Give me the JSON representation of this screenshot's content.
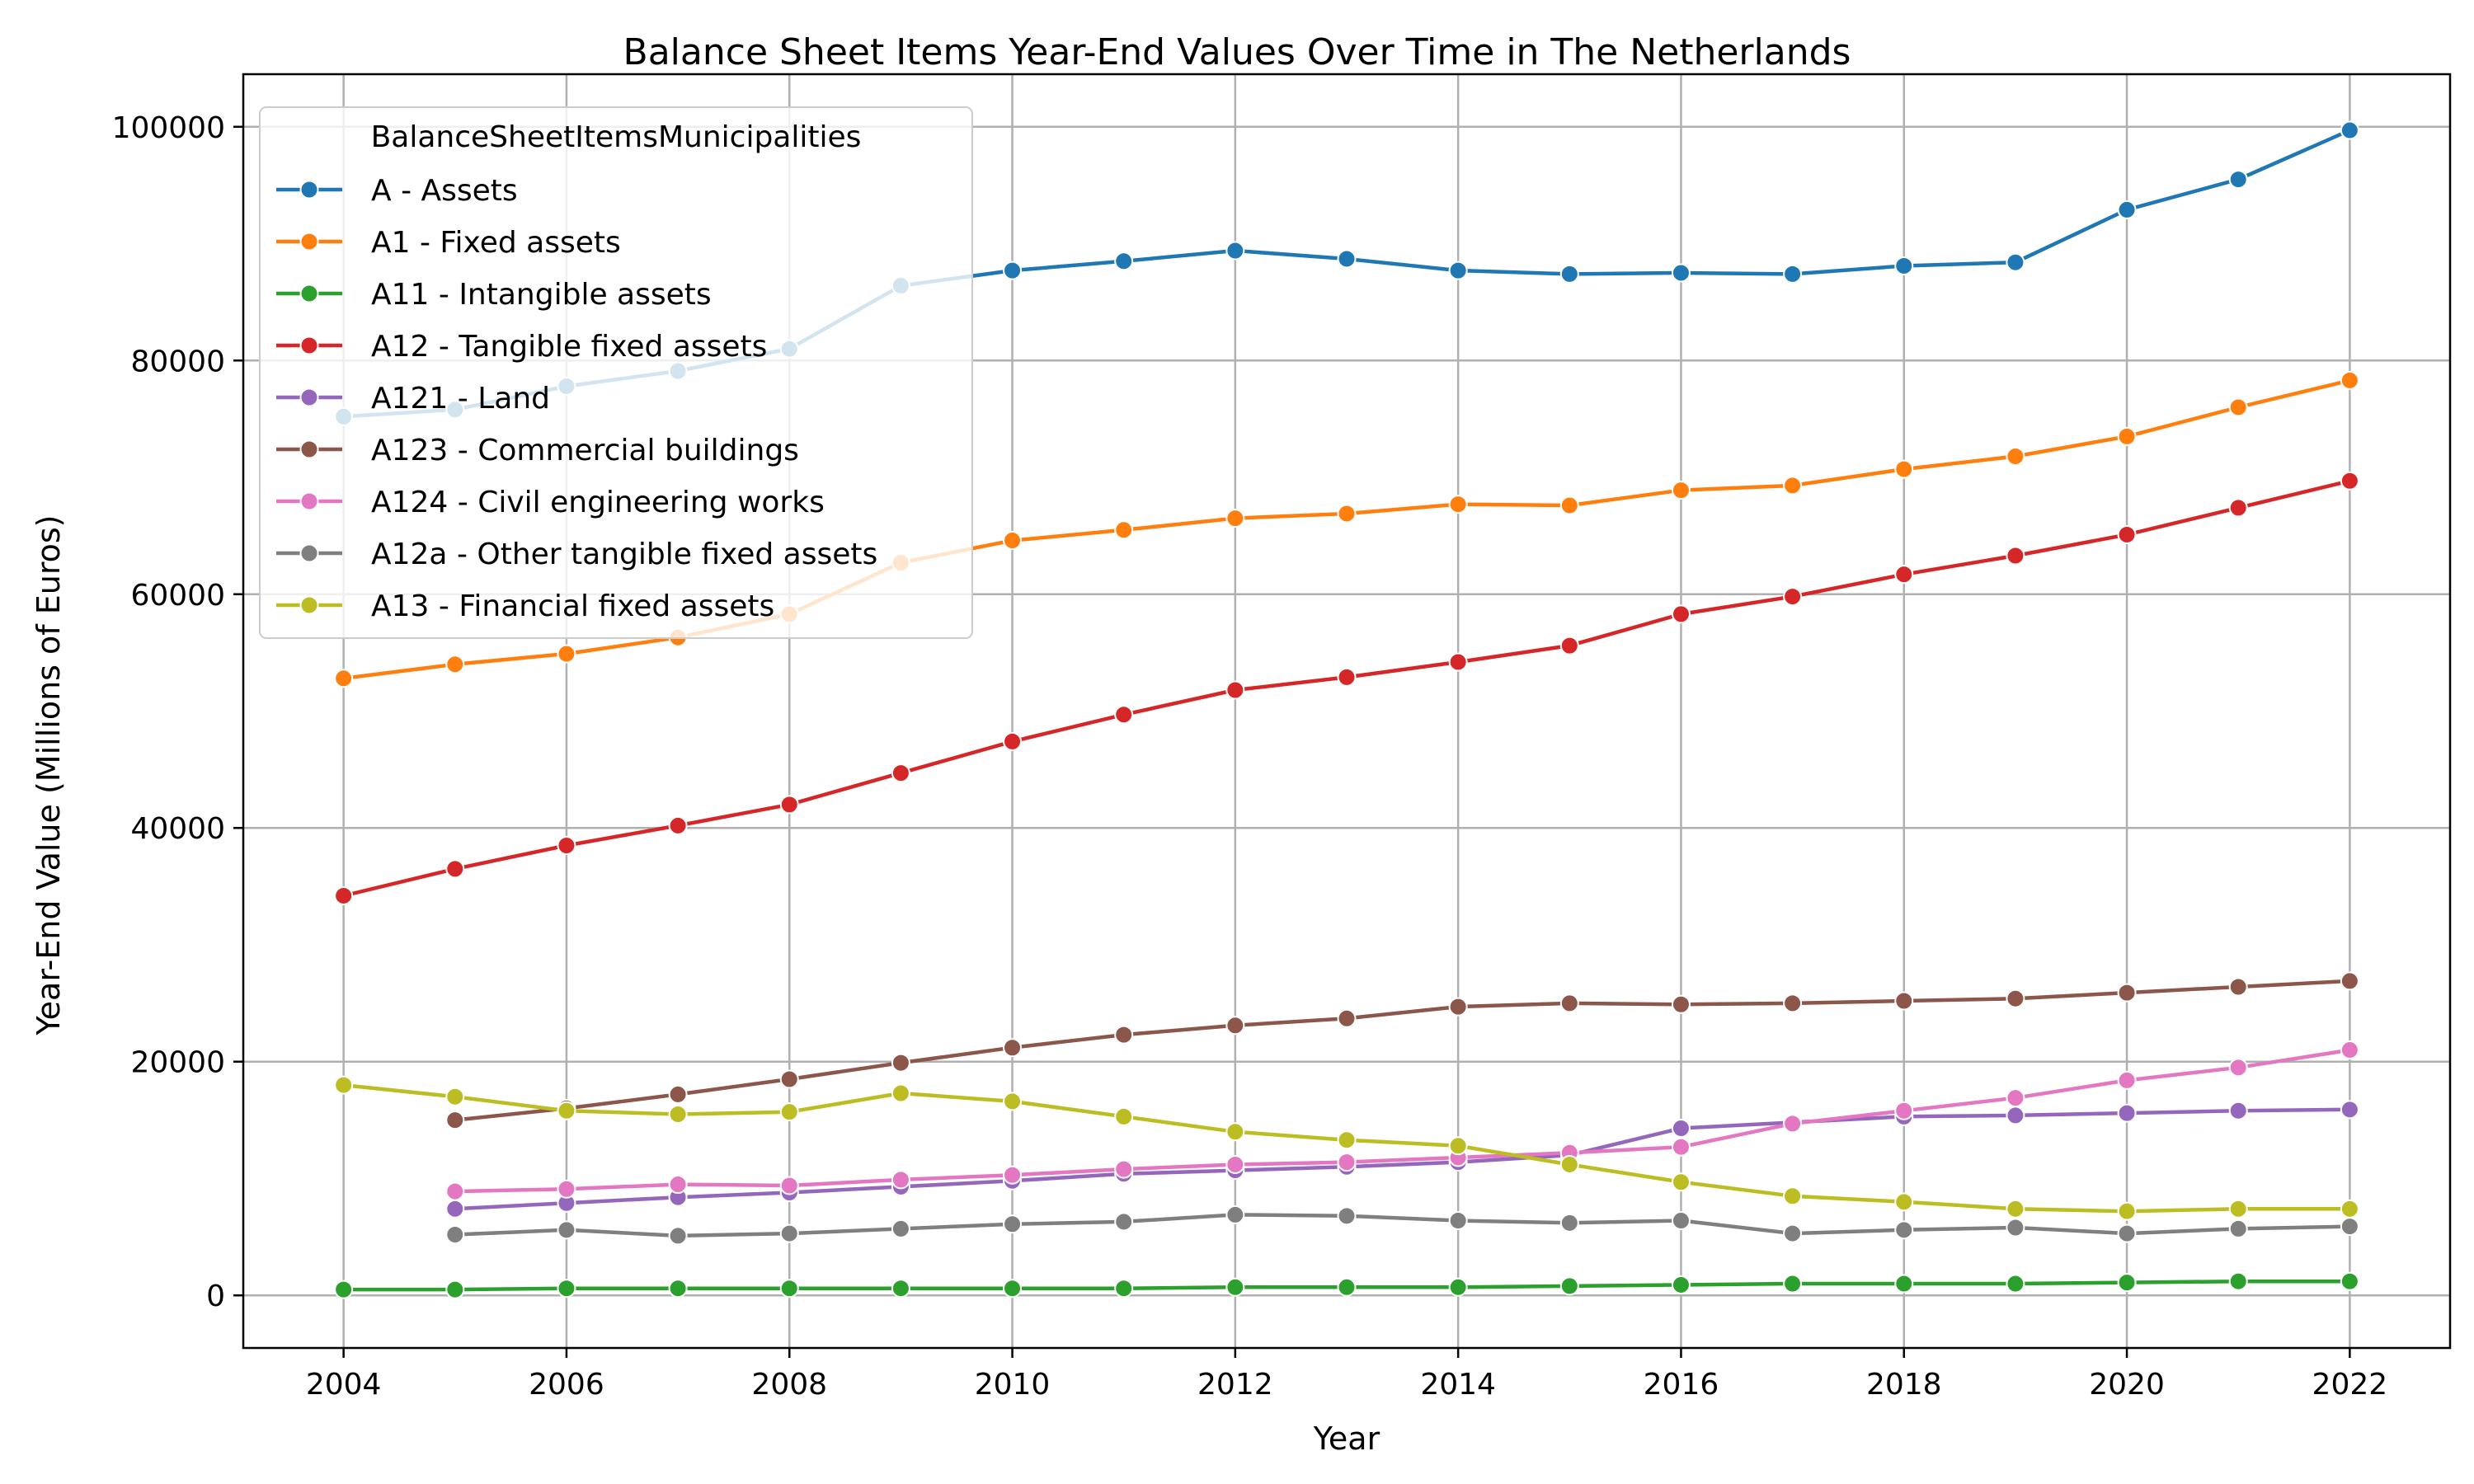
{
  "chart_data": {
    "type": "line",
    "title": "Balance Sheet Items Year-End Values Over Time in The Netherlands",
    "xlabel": "Year",
    "ylabel": "Year-End Value (Millions of Euros)",
    "xlim": [
      2003.1,
      2022.9
    ],
    "ylim": [
      -4500,
      104500
    ],
    "xticks": [
      2004,
      2006,
      2008,
      2010,
      2012,
      2014,
      2016,
      2018,
      2020,
      2022
    ],
    "yticks": [
      0,
      20000,
      40000,
      60000,
      80000,
      100000
    ],
    "grid": true,
    "legend_title": "BalanceSheetItemsMunicipalities",
    "legend_position": "top-left",
    "series": [
      {
        "name": "A - Assets",
        "color": "#1f77b4",
        "x": [
          2004,
          2005,
          2006,
          2007,
          2008,
          2009,
          2010,
          2011,
          2012,
          2013,
          2014,
          2015,
          2016,
          2017,
          2018,
          2019,
          2020,
          2021,
          2022
        ],
        "values": [
          75200,
          75800,
          77800,
          79100,
          81000,
          86400,
          87700,
          88500,
          89400,
          88700,
          87700,
          87400,
          87500,
          87400,
          88100,
          88400,
          92900,
          95500,
          99700
        ]
      },
      {
        "name": "A1 - Fixed assets",
        "color": "#ff7f0e",
        "x": [
          2004,
          2005,
          2006,
          2007,
          2008,
          2009,
          2010,
          2011,
          2012,
          2013,
          2014,
          2015,
          2016,
          2017,
          2018,
          2019,
          2020,
          2021,
          2022
        ],
        "values": [
          52800,
          54000,
          54900,
          56300,
          58300,
          62700,
          64600,
          65500,
          66500,
          66900,
          67700,
          67600,
          68900,
          69300,
          70700,
          71800,
          73500,
          76000,
          78300
        ]
      },
      {
        "name": "A11 - Intangible assets",
        "color": "#2ca02c",
        "x": [
          2004,
          2005,
          2006,
          2007,
          2008,
          2009,
          2010,
          2011,
          2012,
          2013,
          2014,
          2015,
          2016,
          2017,
          2018,
          2019,
          2020,
          2021,
          2022
        ],
        "values": [
          500,
          500,
          600,
          600,
          600,
          600,
          600,
          600,
          700,
          700,
          700,
          800,
          900,
          1000,
          1000,
          1000,
          1100,
          1200,
          1200
        ]
      },
      {
        "name": "A12 - Tangible fixed assets",
        "color": "#d62728",
        "x": [
          2004,
          2005,
          2006,
          2007,
          2008,
          2009,
          2010,
          2011,
          2012,
          2013,
          2014,
          2015,
          2016,
          2017,
          2018,
          2019,
          2020,
          2021,
          2022
        ],
        "values": [
          34200,
          36500,
          38500,
          40200,
          42000,
          44700,
          47400,
          49700,
          51800,
          52900,
          54200,
          55600,
          58300,
          59800,
          61700,
          63300,
          65100,
          67400,
          69700
        ]
      },
      {
        "name": "A121 - Land",
        "color": "#9467bd",
        "x": [
          2005,
          2006,
          2007,
          2008,
          2009,
          2010,
          2011,
          2012,
          2013,
          2014,
          2015,
          2016,
          2017,
          2018,
          2019,
          2020,
          2021,
          2022
        ],
        "values": [
          7400,
          7900,
          8400,
          8800,
          9300,
          9800,
          10400,
          10700,
          11000,
          11400,
          12000,
          14300,
          14800,
          15300,
          15400,
          15600,
          15800,
          15900
        ]
      },
      {
        "name": "A123 - Commercial buildings",
        "color": "#8c564b",
        "x": [
          2005,
          2006,
          2007,
          2008,
          2009,
          2010,
          2011,
          2012,
          2013,
          2014,
          2015,
          2016,
          2017,
          2018,
          2019,
          2020,
          2021,
          2022
        ],
        "values": [
          15000,
          16000,
          17200,
          18500,
          19900,
          21200,
          22300,
          23100,
          23700,
          24700,
          25000,
          24900,
          25000,
          25200,
          25400,
          25900,
          26400,
          26900
        ]
      },
      {
        "name": "A124 - Civil engineering works",
        "color": "#e377c2",
        "x": [
          2005,
          2006,
          2007,
          2008,
          2009,
          2010,
          2011,
          2012,
          2013,
          2014,
          2015,
          2016,
          2017,
          2018,
          2019,
          2020,
          2021,
          2022
        ],
        "values": [
          8900,
          9100,
          9500,
          9400,
          9900,
          10300,
          10800,
          11200,
          11400,
          11800,
          12200,
          12700,
          14700,
          15800,
          16900,
          18400,
          19500,
          21000
        ]
      },
      {
        "name": "A12a - Other tangible fixed assets",
        "color": "#7f7f7f",
        "x": [
          2005,
          2006,
          2007,
          2008,
          2009,
          2010,
          2011,
          2012,
          2013,
          2014,
          2015,
          2016,
          2017,
          2018,
          2019,
          2020,
          2021,
          2022
        ],
        "values": [
          5200,
          5600,
          5100,
          5300,
          5700,
          6100,
          6300,
          6900,
          6800,
          6400,
          6200,
          6400,
          5300,
          5600,
          5800,
          5300,
          5700,
          5900
        ]
      },
      {
        "name": "A13 - Financial fixed assets",
        "color": "#bcbd22",
        "x": [
          2004,
          2005,
          2006,
          2007,
          2008,
          2009,
          2010,
          2011,
          2012,
          2013,
          2014,
          2015,
          2016,
          2017,
          2018,
          2019,
          2020,
          2021,
          2022
        ],
        "values": [
          18000,
          17000,
          15800,
          15500,
          15700,
          17300,
          16600,
          15300,
          14000,
          13300,
          12800,
          11200,
          9700,
          8500,
          8000,
          7400,
          7200,
          7400,
          7400
        ]
      }
    ]
  }
}
